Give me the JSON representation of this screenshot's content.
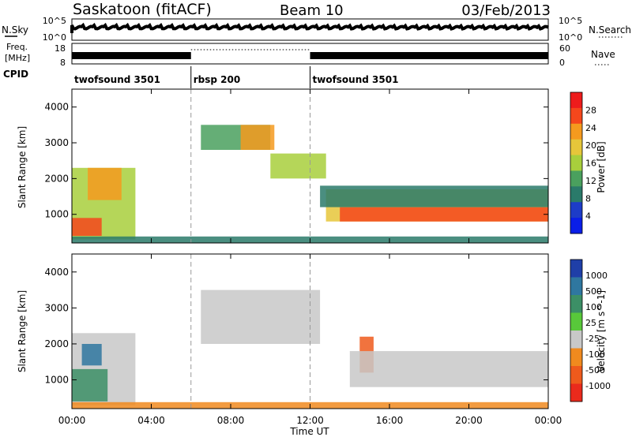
{
  "header": {
    "station": "Saskatoon (fitACF)",
    "beam": "Beam 10",
    "date": "03/Feb/2013"
  },
  "noise_panel": {
    "left_label": "N.Sky",
    "right_label": "N.Search",
    "left_ticks": [
      "10^5",
      "10^0"
    ],
    "right_ticks": [
      "10^5",
      "10^0"
    ]
  },
  "freq_panel": {
    "left_label_1": "Freq.",
    "left_label_2": "[MHz]",
    "right_label": "Nave",
    "left_ticks": [
      "18",
      "8"
    ],
    "right_ticks": [
      "60",
      "0"
    ]
  },
  "cpid": {
    "label": "CPID",
    "segments": [
      {
        "name": "twofsound 3501",
        "start_h": 0,
        "end_h": 6
      },
      {
        "name": "rbsp 200",
        "start_h": 6,
        "end_h": 12
      },
      {
        "name": "twofsound 3501",
        "start_h": 12,
        "end_h": 24
      }
    ]
  },
  "chart_data": [
    {
      "type": "heatmap",
      "title": "Power",
      "ylabel": "Slant Range [km]",
      "colorbar_label": "Power [dB]",
      "colorbar_ticks": [
        "28",
        "24",
        "20",
        "16",
        "12",
        "8",
        "4"
      ],
      "colorbar_colors": [
        "#ee1c1c",
        "#f5471c",
        "#f59a1e",
        "#e6c63a",
        "#a8cf3c",
        "#4aa05e",
        "#2a7a6a",
        "#1d3cc8",
        "#0a1ee8"
      ],
      "x_range_h": [
        0,
        24
      ],
      "ylim": [
        200,
        4500
      ],
      "yticks": [
        "1000",
        "2000",
        "3000",
        "4000"
      ],
      "xticks": [
        "00:00",
        "04:00",
        "08:00",
        "12:00",
        "16:00",
        "20:00",
        "00:00"
      ],
      "regions": [
        {
          "x": [
            0.0,
            3.2
          ],
          "y": [
            300,
            2300
          ],
          "value": 14
        },
        {
          "x": [
            0.0,
            1.5
          ],
          "y": [
            400,
            900
          ],
          "value": 26
        },
        {
          "x": [
            0.8,
            2.5
          ],
          "y": [
            1400,
            2300
          ],
          "value": 22
        },
        {
          "x": [
            6.5,
            10.0
          ],
          "y": [
            2800,
            3500
          ],
          "value": 10
        },
        {
          "x": [
            8.5,
            10.2
          ],
          "y": [
            2800,
            3500
          ],
          "value": 22
        },
        {
          "x": [
            10.0,
            12.8
          ],
          "y": [
            2000,
            2700
          ],
          "value": 14
        },
        {
          "x": [
            12.8,
            24.0
          ],
          "y": [
            800,
            1700
          ],
          "value": 20
        },
        {
          "x": [
            13.5,
            24.0
          ],
          "y": [
            800,
            1200
          ],
          "value": 28
        },
        {
          "x": [
            12.5,
            24.0
          ],
          "y": [
            1200,
            1800
          ],
          "value": 8
        },
        {
          "x": [
            0.0,
            24.0
          ],
          "y": [
            200,
            380
          ],
          "value": 6
        }
      ]
    },
    {
      "type": "heatmap",
      "title": "Velocity",
      "ylabel": "Slant Range [km]",
      "colorbar_label": "Velocity [m s^-1]",
      "colorbar_ticks": [
        "1000",
        "500",
        "100",
        "25",
        "-25",
        "-100",
        "-500",
        "-1000"
      ],
      "colorbar_colors": [
        "#1f3fa8",
        "#2f77a0",
        "#3c8f66",
        "#58c83a",
        "#c8c8c8",
        "#f08a1e",
        "#ee5a1c",
        "#ea2a1c"
      ],
      "x_range_h": [
        0,
        24
      ],
      "ylim": [
        200,
        4500
      ],
      "yticks": [
        "1000",
        "2000",
        "3000",
        "4000"
      ],
      "xticks": [
        "00:00",
        "04:00",
        "08:00",
        "12:00",
        "16:00",
        "20:00",
        "00:00"
      ],
      "xlabel": "Time UT",
      "regions": [
        {
          "x": [
            0.0,
            3.2
          ],
          "y": [
            300,
            2300
          ],
          "value": 0
        },
        {
          "x": [
            0.0,
            1.8
          ],
          "y": [
            400,
            1300
          ],
          "value": 60
        },
        {
          "x": [
            0.5,
            1.5
          ],
          "y": [
            1400,
            2000
          ],
          "value": 300
        },
        {
          "x": [
            6.5,
            12.5
          ],
          "y": [
            2000,
            3500
          ],
          "value": 0
        },
        {
          "x": [
            14.5,
            15.2
          ],
          "y": [
            1200,
            2200
          ],
          "value": -200
        },
        {
          "x": [
            14.0,
            24.0
          ],
          "y": [
            800,
            1800
          ],
          "value": 0
        },
        {
          "x": [
            0.0,
            24.0
          ],
          "y": [
            200,
            380
          ],
          "value": -60
        }
      ]
    }
  ]
}
